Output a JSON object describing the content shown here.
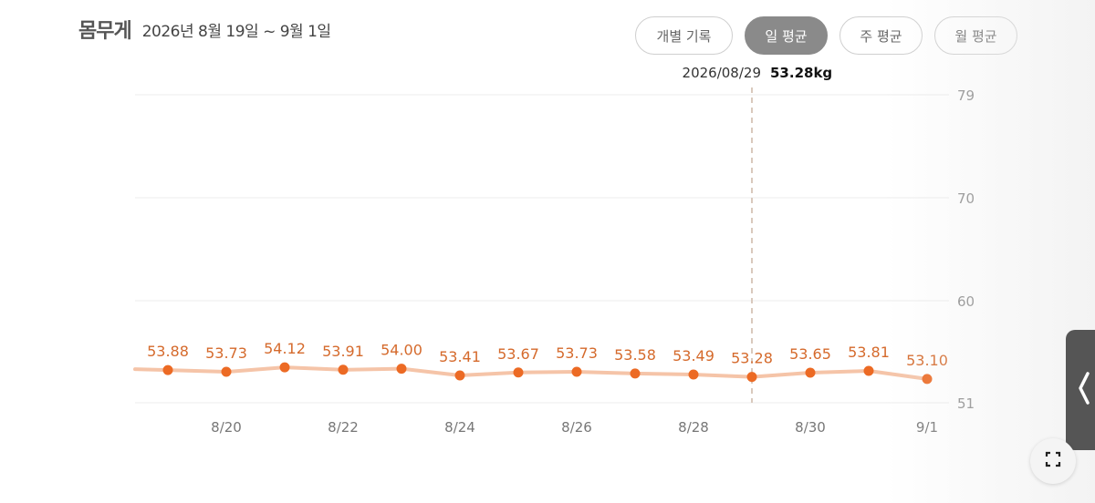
{
  "header": {
    "title": "몸무게",
    "range": "2026년 8월 19일 ~ 9월 1일"
  },
  "buttons": [
    {
      "label": "개별 기록",
      "active": false
    },
    {
      "label": "일 평균",
      "active": true
    },
    {
      "label": "주 평균",
      "active": false
    },
    {
      "label": "월 평균",
      "active": false
    }
  ],
  "tooltip": {
    "date": "2026/08/29",
    "value": "53.28kg"
  },
  "colors": {
    "line": "#f5c4a8",
    "point": "#ec6a24",
    "label": "#d56a2c",
    "grid": "#ececec",
    "cursor": "#d9c9bd"
  },
  "chart_data": {
    "type": "line",
    "x": [
      "8/19",
      "8/20",
      "8/21",
      "8/22",
      "8/23",
      "8/24",
      "8/25",
      "8/26",
      "8/27",
      "8/28",
      "8/29",
      "8/30",
      "8/31",
      "9/1"
    ],
    "x_tick_labels": [
      "8/20",
      "8/22",
      "8/24",
      "8/26",
      "8/28",
      "8/30",
      "9/1"
    ],
    "series": [
      {
        "values": [
          53.88,
          53.73,
          54.12,
          53.91,
          54.0,
          53.41,
          53.67,
          53.73,
          53.58,
          53.49,
          53.28,
          53.65,
          53.81,
          53.1
        ],
        "labels": [
          "53.88",
          "53.73",
          "54.12",
          "53.91",
          "54.00",
          "53.41",
          "53.67",
          "53.73",
          "53.58",
          "53.49",
          "53.28",
          "53.65",
          "53.81",
          "53.10"
        ]
      }
    ],
    "y_ticks": [
      51,
      60,
      70,
      79
    ],
    "ylim": [
      51,
      79
    ],
    "y_axis_position": "right",
    "grid": true,
    "highlight_x": "8/29"
  }
}
